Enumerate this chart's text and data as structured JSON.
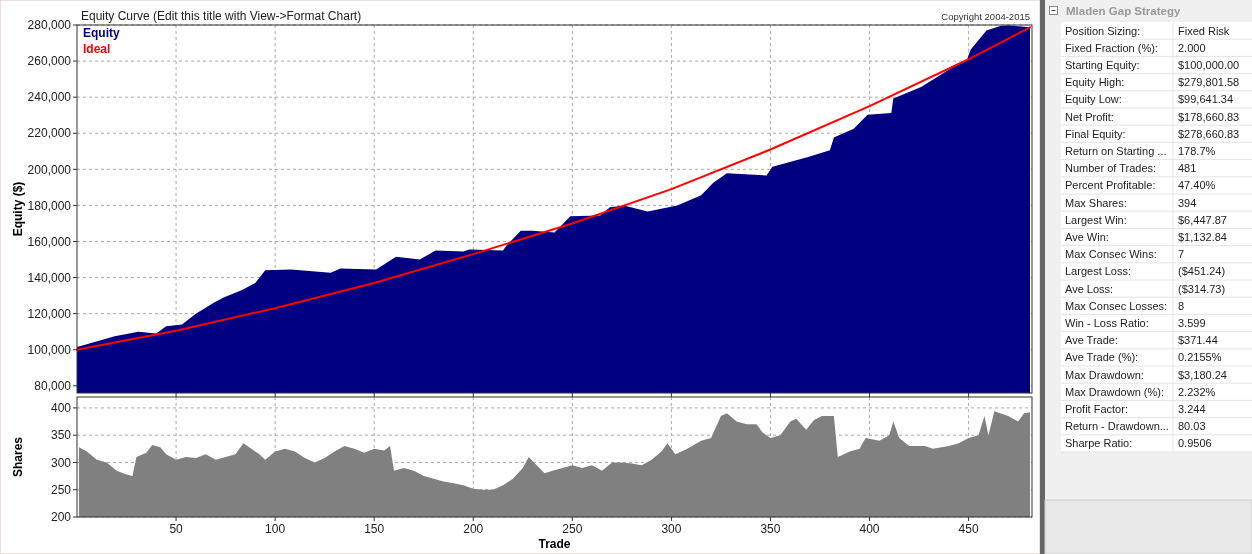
{
  "chart_data": [
    {
      "type": "area",
      "title": "Equity Curve (Edit this title with View->Format Chart)",
      "ylabel": "Equity ($)",
      "annotations": [
        "Copyright 2004-2015"
      ],
      "xlim": [
        0,
        482
      ],
      "ylim": [
        76000,
        280000
      ],
      "xticks": [
        50,
        100,
        150,
        200,
        250,
        300,
        350,
        400,
        450
      ],
      "yticks": [
        {
          "value": 80000,
          "label": "80,000"
        },
        {
          "value": 100000,
          "label": "100,000"
        },
        {
          "value": 120000,
          "label": "120,000"
        },
        {
          "value": 140000,
          "label": "140,000"
        },
        {
          "value": 160000,
          "label": "160,000"
        },
        {
          "value": 180000,
          "label": "180,000"
        },
        {
          "value": 200000,
          "label": "200,000"
        },
        {
          "value": 220000,
          "label": "220,000"
        },
        {
          "value": 240000,
          "label": "240,000"
        },
        {
          "value": 260000,
          "label": "260,000"
        },
        {
          "value": 280000,
          "label": "280,000"
        }
      ],
      "grid": true,
      "legend": "top left",
      "tick_labels": "y",
      "series": [
        {
          "name": "Equity",
          "color": "#000080",
          "type": "area",
          "x": [
            0,
            8,
            19,
            31,
            40,
            45,
            53,
            60,
            69,
            74,
            83,
            90,
            95,
            108,
            128,
            133,
            151,
            161,
            173,
            181,
            195,
            198,
            215,
            217,
            224,
            230,
            241,
            249,
            264,
            269,
            276,
            288,
            303,
            315,
            321,
            328,
            348,
            351,
            369,
            380,
            382,
            392,
            399,
            411,
            412,
            426,
            443,
            449,
            451,
            459,
            466,
            470,
            481
          ],
          "values": [
            101500,
            104000,
            107500,
            110000,
            109000,
            113000,
            114000,
            120000,
            126000,
            129000,
            133000,
            137000,
            144000,
            144500,
            142700,
            145000,
            144500,
            151500,
            150000,
            155000,
            154500,
            155500,
            155000,
            158000,
            166000,
            166000,
            165000,
            174000,
            174400,
            179000,
            180000,
            176600,
            180000,
            185600,
            192400,
            197800,
            196600,
            201400,
            206800,
            210500,
            217700,
            222500,
            230300,
            231200,
            239300,
            245600,
            257300,
            260000,
            266300,
            277000,
            279500,
            279800,
            278700
          ]
        },
        {
          "name": "Ideal",
          "color": "#ff0000",
          "type": "line",
          "x": [
            0,
            50,
            100,
            150,
            200,
            250,
            300,
            350,
            400,
            450,
            481
          ],
          "values": [
            100000,
            110500,
            123000,
            137000,
            153000,
            170000,
            189000,
            211000,
            235000,
            261000,
            278700
          ]
        }
      ]
    },
    {
      "type": "area",
      "xlabel": "Trade",
      "ylabel": "Shares",
      "xlim": [
        0,
        482
      ],
      "ylim": [
        200,
        420
      ],
      "xticks": [
        50,
        100,
        150,
        200,
        250,
        300,
        350,
        400,
        450
      ],
      "yticks": [
        200,
        250,
        300,
        350,
        400
      ],
      "grid": true,
      "series": [
        {
          "color": "#808080",
          "type": "area",
          "x": [
            1,
            5,
            10,
            15,
            20,
            25,
            28,
            30,
            35,
            38,
            42,
            45,
            50,
            55,
            60,
            65,
            70,
            75,
            80,
            84,
            88,
            92,
            95,
            100,
            105,
            110,
            115,
            120,
            125,
            130,
            135,
            140,
            145,
            150,
            155,
            158,
            160,
            165,
            170,
            175,
            180,
            185,
            190,
            195,
            200,
            205,
            210,
            215,
            220,
            225,
            228,
            232,
            236,
            240,
            245,
            250,
            255,
            260,
            265,
            270,
            275,
            280,
            285,
            290,
            295,
            298,
            302,
            308,
            315,
            320,
            325,
            328,
            333,
            338,
            343,
            346,
            350,
            355,
            360,
            363,
            368,
            372,
            376,
            382,
            384,
            390,
            395,
            398,
            405,
            410,
            412,
            415,
            420,
            428,
            432,
            440,
            445,
            450,
            455,
            458,
            460,
            463,
            466,
            470,
            475,
            478,
            481
          ],
          "values": [
            328,
            320,
            305,
            300,
            285,
            278,
            275,
            310,
            318,
            332,
            328,
            315,
            305,
            310,
            308,
            315,
            305,
            310,
            315,
            335,
            325,
            315,
            305,
            320,
            325,
            320,
            308,
            300,
            308,
            320,
            330,
            325,
            318,
            325,
            322,
            330,
            285,
            290,
            285,
            275,
            270,
            265,
            262,
            258,
            252,
            250,
            250,
            258,
            270,
            290,
            310,
            295,
            280,
            285,
            290,
            295,
            290,
            295,
            285,
            300,
            300,
            298,
            295,
            305,
            320,
            335,
            315,
            325,
            340,
            345,
            385,
            390,
            375,
            370,
            370,
            355,
            345,
            350,
            375,
            380,
            360,
            378,
            385,
            385,
            310,
            320,
            325,
            345,
            340,
            350,
            375,
            345,
            330,
            330,
            325,
            330,
            335,
            345,
            350,
            385,
            350,
            394,
            390,
            385,
            375,
            390,
            392
          ]
        }
      ]
    },
    {
      "type": "other",
      "title": "Mladen Gap Strategy",
      "y_categories": [
        "Position Sizing:",
        "Fixed Fraction (%):",
        "Starting Equity:",
        "Equity High:",
        "Equity Low:",
        "Net Profit:",
        "Final Equity:",
        "Return on Starting ...",
        "Number of Trades:",
        "Percent Profitable:",
        "Max Shares:",
        "Largest Win:",
        "Ave Win:",
        "Max Consec Wins:",
        "Largest Loss:",
        "Ave Loss:",
        "Max Consec Losses:",
        "Win - Loss Ratio:",
        "Ave Trade:",
        "Ave Trade (%):",
        "Max Drawdown:",
        "Max Drawdown (%):",
        "Profit Factor:",
        "Return - Drawdown...",
        "Sharpe Ratio:"
      ],
      "cell_labels": [
        [
          "Fixed Risk"
        ],
        [
          "2.000"
        ],
        [
          "$100,000.00"
        ],
        [
          "$279,801.58"
        ],
        [
          "$99,641.34"
        ],
        [
          "$178,660.83"
        ],
        [
          "$278,660.83"
        ],
        [
          "178.7%"
        ],
        [
          "481"
        ],
        [
          "47.40%"
        ],
        [
          "394"
        ],
        [
          "$6,447.87"
        ],
        [
          "$1,132.84"
        ],
        [
          "7"
        ],
        [
          "($451.24)"
        ],
        [
          "($314.73)"
        ],
        [
          "8"
        ],
        [
          "3.599"
        ],
        [
          "$371.44"
        ],
        [
          "0.2155%"
        ],
        [
          "$3,180.24"
        ],
        [
          "2.232%"
        ],
        [
          "3.244"
        ],
        [
          "80.03"
        ],
        [
          "0.9506"
        ]
      ]
    }
  ]
}
